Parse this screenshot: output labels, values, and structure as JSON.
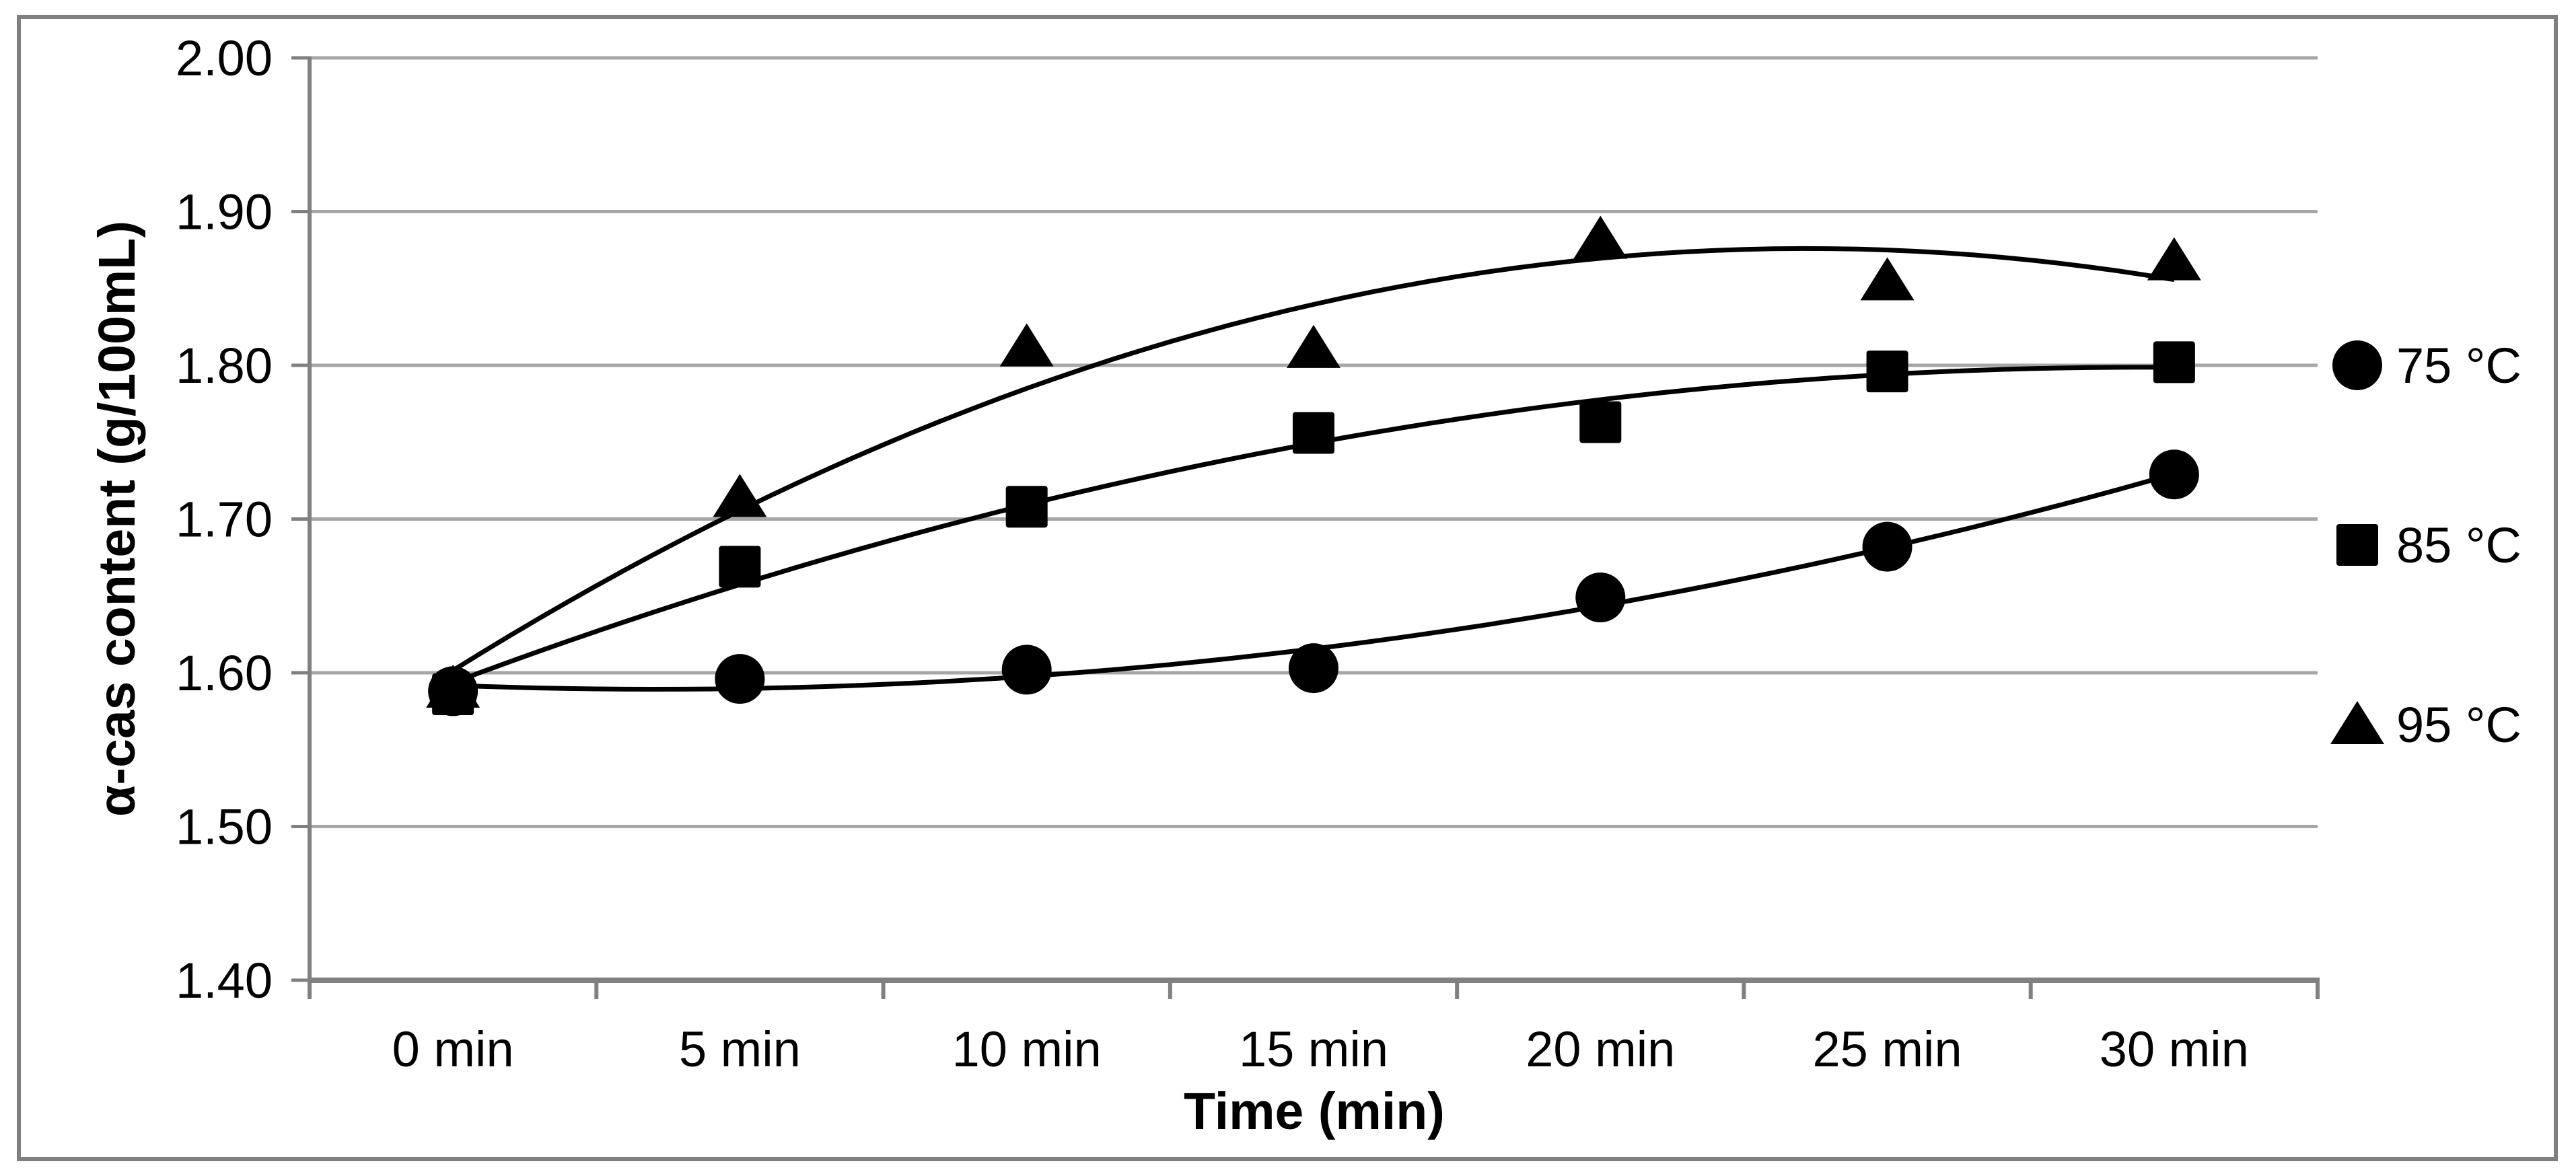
{
  "chart_data": {
    "type": "scatter",
    "title": "",
    "xlabel": "Time (min)",
    "ylabel": "α-cas content (g/100mL)",
    "categories": [
      "0 min",
      "5 min",
      "10 min",
      "15 min",
      "20 min",
      "25 min",
      "30 min"
    ],
    "x_values_min": [
      0,
      5,
      10,
      15,
      20,
      25,
      30
    ],
    "ylim": [
      1.4,
      2.0
    ],
    "ytick_step": 0.1,
    "ytick_labels": [
      "1.40",
      "1.50",
      "1.60",
      "1.70",
      "1.80",
      "1.90",
      "2.00"
    ],
    "grid": true,
    "legend_position": "right",
    "series": [
      {
        "name": "75 °C",
        "marker": "circle",
        "trendline": "quadratic",
        "values": [
          1.588,
          1.596,
          1.602,
          1.603,
          1.649,
          1.682,
          1.729
        ]
      },
      {
        "name": "85 °C",
        "marker": "square",
        "trendline": "quadratic",
        "values": [
          1.586,
          1.669,
          1.708,
          1.756,
          1.763,
          1.796,
          1.802
        ]
      },
      {
        "name": "95 °C",
        "marker": "triangle",
        "trendline": "quadratic",
        "values": [
          1.59,
          1.714,
          1.812,
          1.811,
          1.882,
          1.855,
          1.868
        ]
      }
    ],
    "colors": {
      "marker": "#000000",
      "trendline": "#000000",
      "gridline": "#a6a6a6",
      "axis": "#808080",
      "figure_border": "#7f7f7f",
      "background": "#ffffff"
    }
  }
}
